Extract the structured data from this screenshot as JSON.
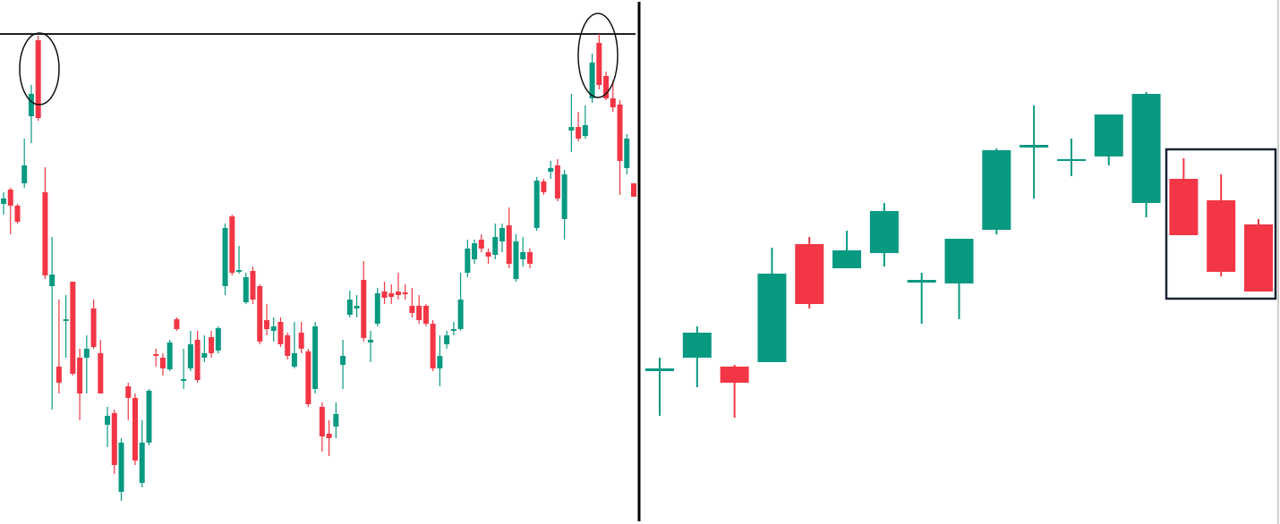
{
  "chart_data": [
    {
      "type": "candlestick",
      "up_color": "#089981",
      "down_color": "#f23645",
      "ylim": [
        0,
        586
      ],
      "hline": 548,
      "open": [
        358,
        374,
        356,
        381,
        456,
        541,
        371,
        266,
        176,
        227,
        271,
        186,
        186,
        241,
        191,
        111,
        124,
        36,
        154,
        141,
        46,
        91,
        190,
        186,
        173,
        229,
        160,
        174,
        206,
        186,
        209,
        194,
        266,
        344,
        282,
        248,
        283,
        266,
        228,
        216,
        226,
        211,
        176,
        214,
        193,
        151,
        131,
        101,
        109,
        178,
        234,
        241,
        273,
        203,
        224,
        260,
        258,
        260,
        259,
        244,
        244,
        244,
        224,
        174,
        201,
        216,
        218,
        281,
        296,
        318,
        304,
        301,
        316,
        334,
        274,
        296,
        304,
        331,
        383,
        394,
        401,
        341,
        440,
        444,
        434,
        476,
        538,
        501,
        476,
        469,
        398,
        381
      ],
      "high": [
        371,
        376,
        358,
        431,
        491,
        546,
        399,
        321,
        251,
        256,
        271,
        196,
        211,
        251,
        206,
        131,
        128,
        96,
        158,
        146,
        116,
        151,
        196,
        191,
        206,
        231,
        196,
        216,
        216,
        211,
        216,
        221,
        336,
        346,
        311,
        281,
        288,
        268,
        246,
        231,
        231,
        214,
        226,
        226,
        196,
        226,
        136,
        116,
        136,
        206,
        261,
        256,
        294,
        216,
        264,
        271,
        268,
        281,
        268,
        264,
        256,
        246,
        228,
        211,
        216,
        226,
        281,
        318,
        318,
        324,
        308,
        336,
        336,
        354,
        324,
        321,
        308,
        388,
        386,
        406,
        408,
        396,
        481,
        461,
        468,
        526,
        548,
        506,
        496,
        474,
        436,
        381
      ],
      "low": [
        346,
        324,
        336,
        376,
        426,
        451,
        274,
        128,
        146,
        186,
        166,
        116,
        146,
        196,
        146,
        86,
        56,
        26,
        116,
        66,
        41,
        88,
        176,
        166,
        171,
        216,
        151,
        171,
        158,
        181,
        186,
        191,
        256,
        278,
        280,
        246,
        246,
        201,
        211,
        204,
        198,
        184,
        174,
        191,
        131,
        146,
        81,
        76,
        96,
        151,
        231,
        231,
        204,
        181,
        221,
        246,
        246,
        251,
        251,
        231,
        224,
        221,
        171,
        154,
        196,
        211,
        216,
        276,
        291,
        304,
        291,
        296,
        304,
        286,
        271,
        288,
        286,
        328,
        368,
        386,
        361,
        318,
        416,
        428,
        431,
        471,
        486,
        474,
        461,
        368,
        391,
        366
      ],
      "close": [
        364,
        356,
        338,
        401,
        481,
        454,
        278,
        279,
        158,
        229,
        168,
        146,
        196,
        198,
        146,
        121,
        66,
        91,
        141,
        71,
        91,
        149,
        188,
        174,
        203,
        218,
        162,
        201,
        161,
        191,
        191,
        219,
        331,
        281,
        284,
        276,
        251,
        204,
        218,
        221,
        201,
        188,
        191,
        196,
        134,
        221,
        98,
        96,
        123,
        188,
        251,
        244,
        208,
        206,
        258,
        253,
        254,
        256,
        257,
        236,
        228,
        224,
        174,
        188,
        211,
        218,
        251,
        308,
        314,
        308,
        299,
        321,
        331,
        291,
        316,
        304,
        291,
        384,
        371,
        398,
        364,
        391,
        444,
        431,
        446,
        516,
        491,
        476,
        466,
        406,
        431,
        366
      ]
    },
    {
      "type": "candlestick",
      "up_color": "#089981",
      "down_color": "#f23645",
      "ylim": [
        0,
        586
      ],
      "open": [
        171,
        186,
        176,
        181,
        313,
        286,
        303,
        270,
        269,
        329,
        421,
        406,
        411,
        359,
        386,
        362,
        335
      ],
      "high": [
        186,
        221,
        178,
        309,
        321,
        328,
        359,
        281,
        319,
        420,
        468,
        431,
        458,
        483,
        409,
        391,
        341
      ],
      "low": [
        121,
        153,
        119,
        181,
        241,
        286,
        288,
        224,
        229,
        324,
        364,
        389,
        401,
        343,
        323,
        277,
        260
      ],
      "close": [
        174,
        214,
        158,
        280,
        246,
        306,
        350,
        273,
        319,
        418,
        424,
        408,
        458,
        481,
        323,
        282,
        260
      ]
    }
  ]
}
